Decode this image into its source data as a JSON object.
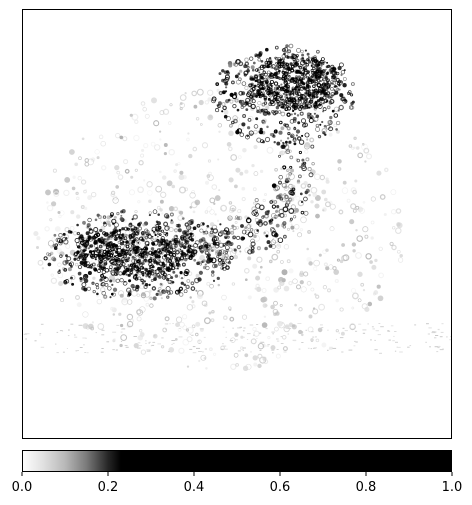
{
  "chart_data": {
    "type": "heatmap",
    "title": "",
    "xlabel": "",
    "ylabel": "",
    "description_free": true,
    "axes_ticks_visible": false,
    "colorbar": {
      "orientation": "horizontal",
      "placement": "bottom",
      "range": [
        0.0,
        1.0
      ],
      "ticks": [
        0.0,
        0.2,
        0.4,
        0.6,
        0.8,
        1.0
      ],
      "tick_labels": [
        "0.0",
        "0.2",
        "0.4",
        "0.6",
        "0.8",
        "1.0"
      ],
      "gradient_stops": [
        {
          "value": 0.0,
          "color": "#ffffff"
        },
        {
          "value": 0.05,
          "color": "#e0e0e0"
        },
        {
          "value": 0.1,
          "color": "#b8b8b8"
        },
        {
          "value": 0.15,
          "color": "#7a7a7a"
        },
        {
          "value": 0.2,
          "color": "#262626"
        },
        {
          "value": 0.23,
          "color": "#000000"
        },
        {
          "value": 1.0,
          "color": "#000000"
        }
      ]
    },
    "heat_regions": [
      {
        "id": "upper-cluster",
        "intensity": 0.9
      },
      {
        "id": "upper-cluster-edge",
        "intensity": 0.45
      },
      {
        "id": "lower-left-cluster",
        "intensity": 0.85
      },
      {
        "id": "lower-left-cluster-edge",
        "intensity": 0.4
      },
      {
        "id": "connecting-arc",
        "intensity": 0.25
      },
      {
        "id": "faint-body",
        "intensity": 0.08
      }
    ]
  },
  "colors": {
    "axes_frame": "#000000",
    "background": "#ffffff"
  }
}
